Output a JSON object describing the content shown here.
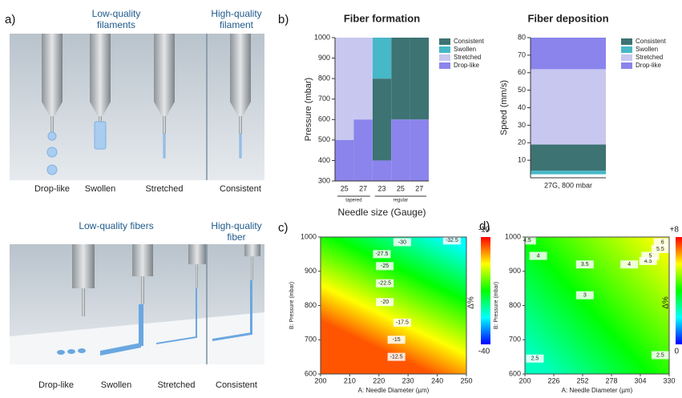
{
  "panel_labels": {
    "a": "a)",
    "b": "b)",
    "c": "c)",
    "d": "d)"
  },
  "panel_a": {
    "filaments": {
      "low": "Low-quality filaments",
      "high": "High-quality filament",
      "states": [
        "Drop-like",
        "Swollen",
        "Stretched",
        "Consistent"
      ]
    },
    "fibers": {
      "low": "Low-quality fibers",
      "high": "High-quality fiber",
      "states": [
        "Drop-like",
        "Swollen",
        "Stretched",
        "Consistent"
      ]
    }
  },
  "chart_data": [
    {
      "type": "range-bar",
      "title": "Fiber formation",
      "xlabel": "Needle size (Gauge)",
      "ylabel": "Pressure (mbar)",
      "categories": [
        "25",
        "27",
        "23",
        "25",
        "27"
      ],
      "groups": [
        {
          "label": "tapered",
          "size": 2
        },
        {
          "label": "regular",
          "size": 3
        }
      ],
      "ylim": [
        300,
        1000
      ],
      "yticks": [
        300,
        400,
        500,
        600,
        700,
        800,
        900,
        1000
      ],
      "series": [
        {
          "name": "Consistent",
          "color": "#3d7373",
          "ranges": [
            null,
            null,
            [
              400,
              800
            ],
            [
              600,
              1000
            ],
            [
              600,
              1000
            ]
          ]
        },
        {
          "name": "Swollen",
          "color": "#46b8c8",
          "ranges": [
            null,
            null,
            [
              800,
              1000
            ],
            null,
            null
          ]
        },
        {
          "name": "Stretched",
          "color": "#c7c7f0",
          "ranges": [
            [
              500,
              1000
            ],
            [
              600,
              1000
            ],
            null,
            null,
            null
          ]
        },
        {
          "name": "Drop-like",
          "color": "#8a84ec",
          "ranges": [
            [
              300,
              500
            ],
            [
              300,
              600
            ],
            [
              300,
              400
            ],
            [
              300,
              600
            ],
            [
              300,
              600
            ]
          ]
        }
      ]
    },
    {
      "type": "range-bar",
      "title": "Fiber deposition",
      "ylabel": "Speed (mm/s)",
      "categories": [
        "27G, 800 mbar"
      ],
      "ylim": [
        0,
        80
      ],
      "yticks": [
        10,
        20,
        30,
        40,
        50,
        60,
        70,
        80
      ],
      "series": [
        {
          "name": "Consistent",
          "color": "#3d7373",
          "ranges": [
            [
              4,
              19
            ]
          ]
        },
        {
          "name": "Swollen",
          "color": "#46b8c8",
          "ranges": [
            [
              2,
              4
            ]
          ]
        },
        {
          "name": "Stretched",
          "color": "#c7c7f0",
          "ranges": [
            [
              19,
              62
            ]
          ]
        },
        {
          "name": "Drop-like",
          "color": "#8a84ec",
          "ranges": [
            [
              62,
              80
            ]
          ]
        }
      ]
    },
    {
      "type": "contour",
      "xlabel": "A: Needle Diameter (µm)",
      "ylabel": "B: Pressure (mbar)",
      "xlim": [
        200,
        250
      ],
      "xticks": [
        200,
        210,
        220,
        230,
        240,
        250
      ],
      "ylim": [
        600,
        1000
      ],
      "yticks": [
        600,
        700,
        800,
        900,
        1000
      ],
      "colormap": [
        "#0000ff",
        "#00ffff",
        "#00ff00",
        "#ffff00",
        "#ff0000"
      ],
      "colorbar": {
        "label": "Δ%",
        "lim": [
          -40,
          -10
        ],
        "ticks": [
          -40,
          -10
        ]
      },
      "contour_labels": [
        {
          "x": 245,
          "y": 990,
          "value": -32.5
        },
        {
          "x": 228,
          "y": 985,
          "value": -30
        },
        {
          "x": 221,
          "y": 950,
          "value": -27.5
        },
        {
          "x": 222,
          "y": 915,
          "value": -25
        },
        {
          "x": 222,
          "y": 865,
          "value": -22.5
        },
        {
          "x": 222,
          "y": 810,
          "value": -20
        },
        {
          "x": 228,
          "y": 750,
          "value": -17.5
        },
        {
          "x": 226,
          "y": 700,
          "value": -15
        },
        {
          "x": 226,
          "y": 650,
          "value": -12.5
        }
      ]
    },
    {
      "type": "contour",
      "xlabel": "A: Needle Diameter (µm)",
      "ylabel": "B: Pressure (mbar)",
      "xlim": [
        200,
        330
      ],
      "xticks": [
        200,
        226,
        252,
        278,
        304,
        330
      ],
      "ylim": [
        600,
        1000
      ],
      "yticks": [
        600,
        700,
        800,
        900,
        1000
      ],
      "colormap": [
        "#0000ff",
        "#00ffff",
        "#00ff00",
        "#ffff00",
        "#ff0000"
      ],
      "colorbar": {
        "label": "Δ%",
        "lim": [
          0,
          8
        ],
        "ticks": [
          0,
          {
            "value": 8,
            "label": "+8"
          }
        ]
      },
      "contour_labels": [
        {
          "x": 202,
          "y": 990,
          "value": 4.5
        },
        {
          "x": 212,
          "y": 945,
          "value": 4
        },
        {
          "x": 254,
          "y": 920,
          "value": 3.5
        },
        {
          "x": 254,
          "y": 830,
          "value": 3
        },
        {
          "x": 209,
          "y": 645,
          "value": 2.5
        },
        {
          "x": 322,
          "y": 655,
          "value": 2.5
        },
        {
          "x": 294,
          "y": 920,
          "value": 4
        },
        {
          "x": 311,
          "y": 930,
          "value": 4.5
        },
        {
          "x": 313,
          "y": 945,
          "value": 5
        },
        {
          "x": 322,
          "y": 965,
          "value": 5.5
        },
        {
          "x": 324,
          "y": 985,
          "value": 6
        }
      ]
    }
  ]
}
